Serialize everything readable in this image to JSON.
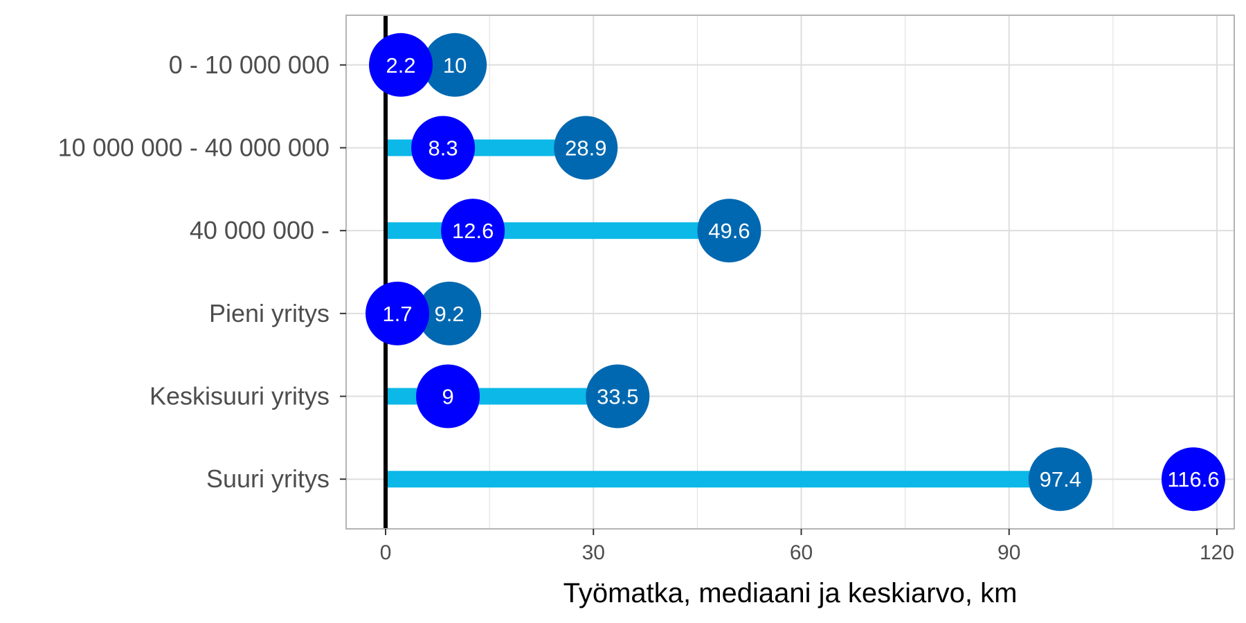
{
  "chart_data": {
    "type": "dumbbell",
    "xlabel": "Työmatka, mediaani ja keskiarvo, km",
    "ylabel": "",
    "xlim": [
      -5.7,
      122.5
    ],
    "x_ticks": [
      0,
      30,
      60,
      90,
      120
    ],
    "x_tick_labels": [
      "0",
      "30",
      "60",
      "90",
      "120"
    ],
    "grid": true,
    "categories": [
      "0 - 10 000 000",
      "10 000 000 - 40 000 000",
      "40 000 000 - ",
      "Pieni yritys",
      "Keskisuuri yritys",
      "Suuri yritys"
    ],
    "series": [
      {
        "values": [
          2.2,
          8.3,
          12.6,
          1.7,
          9,
          116.6
        ],
        "labels": [
          "2.2",
          "8.3",
          "12.6",
          "1.7",
          "9",
          "116.6"
        ],
        "color": "#0000ff"
      },
      {
        "values": [
          10,
          28.9,
          49.6,
          9.2,
          33.5,
          97.4
        ],
        "labels": [
          "10",
          "28.9",
          "49.6",
          "9.2",
          "33.5",
          "97.4"
        ],
        "color": "#0068b0"
      }
    ],
    "bar_values": [
      0,
      28.9,
      49.6,
      0,
      33.5,
      97.4
    ],
    "colors": {
      "bar": "#0bb8e8",
      "zero_line": "#000000",
      "grid": "#dedede",
      "panel_border": "#b3b3b3"
    }
  }
}
